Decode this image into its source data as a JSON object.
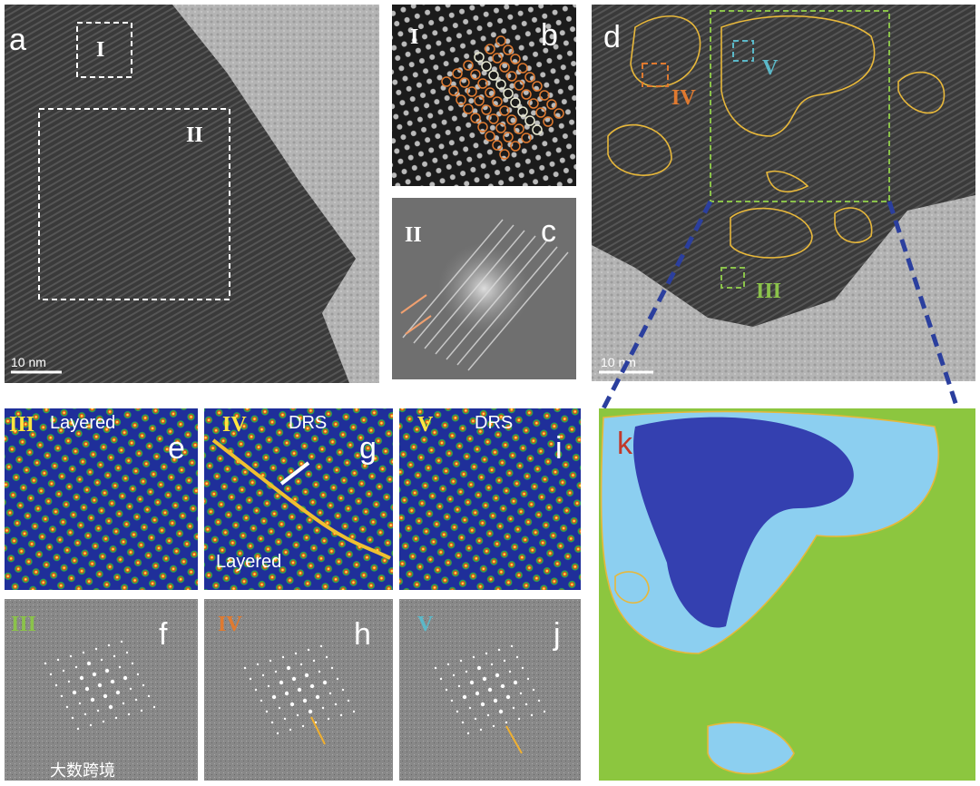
{
  "panels": {
    "a": {
      "label": "a",
      "regions": [
        "I",
        "II"
      ],
      "scale_bar": "10 nm"
    },
    "b": {
      "label": "b",
      "region": "I"
    },
    "c": {
      "label": "c",
      "region": "II"
    },
    "d": {
      "label": "d",
      "regions": [
        "V",
        "IV",
        "III"
      ],
      "scale_bar": "10 nm"
    },
    "e": {
      "label": "e",
      "region": "III",
      "phase": "Layered"
    },
    "g": {
      "label": "g",
      "region": "IV",
      "phases": [
        "DRS",
        "Layered"
      ]
    },
    "i": {
      "label": "i",
      "region": "V",
      "phase": "DRS"
    },
    "f": {
      "label": "f",
      "region": "III"
    },
    "h": {
      "label": "h",
      "region": "IV"
    },
    "j": {
      "label": "j",
      "region": "V"
    },
    "k": {
      "label": "k"
    }
  },
  "watermark": "大数跨境"
}
